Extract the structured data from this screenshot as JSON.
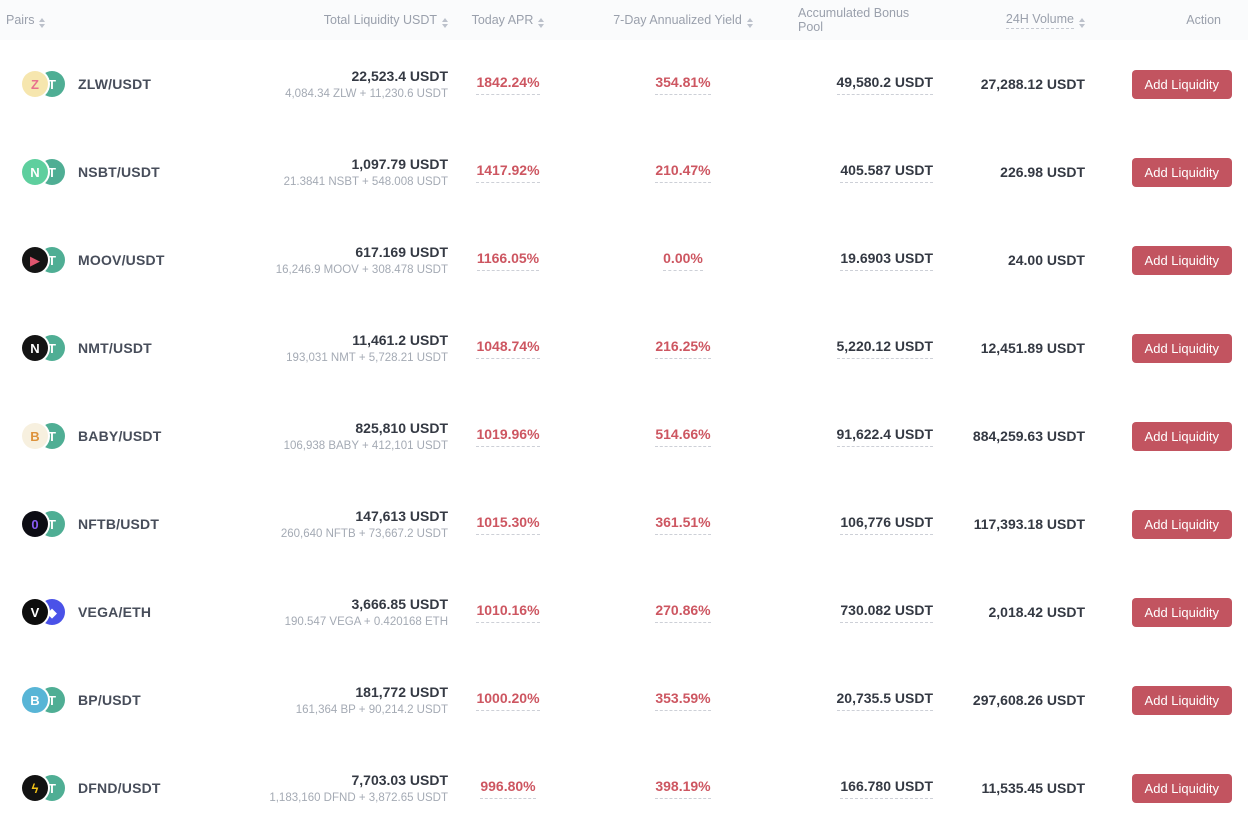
{
  "colors": {
    "apr_red": "#cd5661",
    "button_bg": "#c25460",
    "header_text": "#9aa0ac",
    "primary_text": "#343943",
    "secondary_text": "#a4aab4"
  },
  "table": {
    "headers": [
      {
        "label": "Pairs",
        "sortable": true
      },
      {
        "label": "Total Liquidity USDT",
        "sortable": true
      },
      {
        "label": "Today APR",
        "sortable": true
      },
      {
        "label": "7-Day Annualized Yield",
        "sortable": true
      },
      {
        "label": "Accumulated Bonus Pool",
        "sortable": false
      },
      {
        "label": "24H Volume",
        "sortable": true
      },
      {
        "label": "Action",
        "sortable": false
      }
    ],
    "action_label": "Add Liquidity",
    "rows": [
      {
        "pair": "ZLW/USDT",
        "base_icon": {
          "glyph": "Z",
          "bg": "#f6e6ae",
          "fg": "#e8708d"
        },
        "quote_icon": {
          "glyph": "T",
          "bg": "#4fae94",
          "fg": "#ffffff"
        },
        "total_liquidity": "22,523.4 USDT",
        "composition": "4,084.34 ZLW + 11,230.6 USDT",
        "today_apr": "1842.24%",
        "yield_7d": "354.81%",
        "bonus_pool": "49,580.2 USDT",
        "volume_24h": "27,288.12 USDT"
      },
      {
        "pair": "NSBT/USDT",
        "base_icon": {
          "glyph": "N",
          "bg": "#5ecf9e",
          "fg": "#ffffff"
        },
        "quote_icon": {
          "glyph": "T",
          "bg": "#4fae94",
          "fg": "#ffffff"
        },
        "total_liquidity": "1,097.79 USDT",
        "composition": "21.3841 NSBT + 548.008 USDT",
        "today_apr": "1417.92%",
        "yield_7d": "210.47%",
        "bonus_pool": "405.587 USDT",
        "volume_24h": "226.98 USDT"
      },
      {
        "pair": "MOOV/USDT",
        "base_icon": {
          "glyph": "▶",
          "bg": "#141414",
          "fg": "#e0556e"
        },
        "quote_icon": {
          "glyph": "T",
          "bg": "#4fae94",
          "fg": "#ffffff"
        },
        "total_liquidity": "617.169 USDT",
        "composition": "16,246.9 MOOV + 308.478 USDT",
        "today_apr": "1166.05%",
        "yield_7d": "0.00%",
        "bonus_pool": "19.6903 USDT",
        "volume_24h": "24.00 USDT"
      },
      {
        "pair": "NMT/USDT",
        "base_icon": {
          "glyph": "N",
          "bg": "#141414",
          "fg": "#ffffff"
        },
        "quote_icon": {
          "glyph": "T",
          "bg": "#4fae94",
          "fg": "#ffffff"
        },
        "total_liquidity": "11,461.2 USDT",
        "composition": "193,031 NMT + 5,728.21 USDT",
        "today_apr": "1048.74%",
        "yield_7d": "216.25%",
        "bonus_pool": "5,220.12 USDT",
        "volume_24h": "12,451.89 USDT"
      },
      {
        "pair": "BABY/USDT",
        "base_icon": {
          "glyph": "B",
          "bg": "#f7f0df",
          "fg": "#dd923b"
        },
        "quote_icon": {
          "glyph": "T",
          "bg": "#4fae94",
          "fg": "#ffffff"
        },
        "total_liquidity": "825,810 USDT",
        "composition": "106,938 BABY + 412,101 USDT",
        "today_apr": "1019.96%",
        "yield_7d": "514.66%",
        "bonus_pool": "91,622.4 USDT",
        "volume_24h": "884,259.63 USDT"
      },
      {
        "pair": "NFTB/USDT",
        "base_icon": {
          "glyph": "0",
          "bg": "#0d0d14",
          "fg": "#8a5cf5"
        },
        "quote_icon": {
          "glyph": "T",
          "bg": "#4fae94",
          "fg": "#ffffff"
        },
        "total_liquidity": "147,613 USDT",
        "composition": "260,640 NFTB + 73,667.2 USDT",
        "today_apr": "1015.30%",
        "yield_7d": "361.51%",
        "bonus_pool": "106,776 USDT",
        "volume_24h": "117,393.18 USDT"
      },
      {
        "pair": "VEGA/ETH",
        "base_icon": {
          "glyph": "V",
          "bg": "#0d0d0d",
          "fg": "#ffffff"
        },
        "quote_icon": {
          "glyph": "◆",
          "bg": "#4a52e8",
          "fg": "#ffffff"
        },
        "total_liquidity": "3,666.85 USDT",
        "composition": "190.547 VEGA + 0.420168 ETH",
        "today_apr": "1010.16%",
        "yield_7d": "270.86%",
        "bonus_pool": "730.082 USDT",
        "volume_24h": "2,018.42 USDT"
      },
      {
        "pair": "BP/USDT",
        "base_icon": {
          "glyph": "B",
          "bg": "#58b5d6",
          "fg": "#ffffff"
        },
        "quote_icon": {
          "glyph": "T",
          "bg": "#4fae94",
          "fg": "#ffffff"
        },
        "total_liquidity": "181,772 USDT",
        "composition": "161,364 BP + 90,214.2 USDT",
        "today_apr": "1000.20%",
        "yield_7d": "353.59%",
        "bonus_pool": "20,735.5 USDT",
        "volume_24h": "297,608.26 USDT"
      },
      {
        "pair": "DFND/USDT",
        "base_icon": {
          "glyph": "ϟ",
          "bg": "#121212",
          "fg": "#f5c518"
        },
        "quote_icon": {
          "glyph": "T",
          "bg": "#4fae94",
          "fg": "#ffffff"
        },
        "total_liquidity": "7,703.03 USDT",
        "composition": "1,183,160 DFND + 3,872.65 USDT",
        "today_apr": "996.80%",
        "yield_7d": "398.19%",
        "bonus_pool": "166.780 USDT",
        "volume_24h": "11,535.45 USDT"
      }
    ]
  }
}
